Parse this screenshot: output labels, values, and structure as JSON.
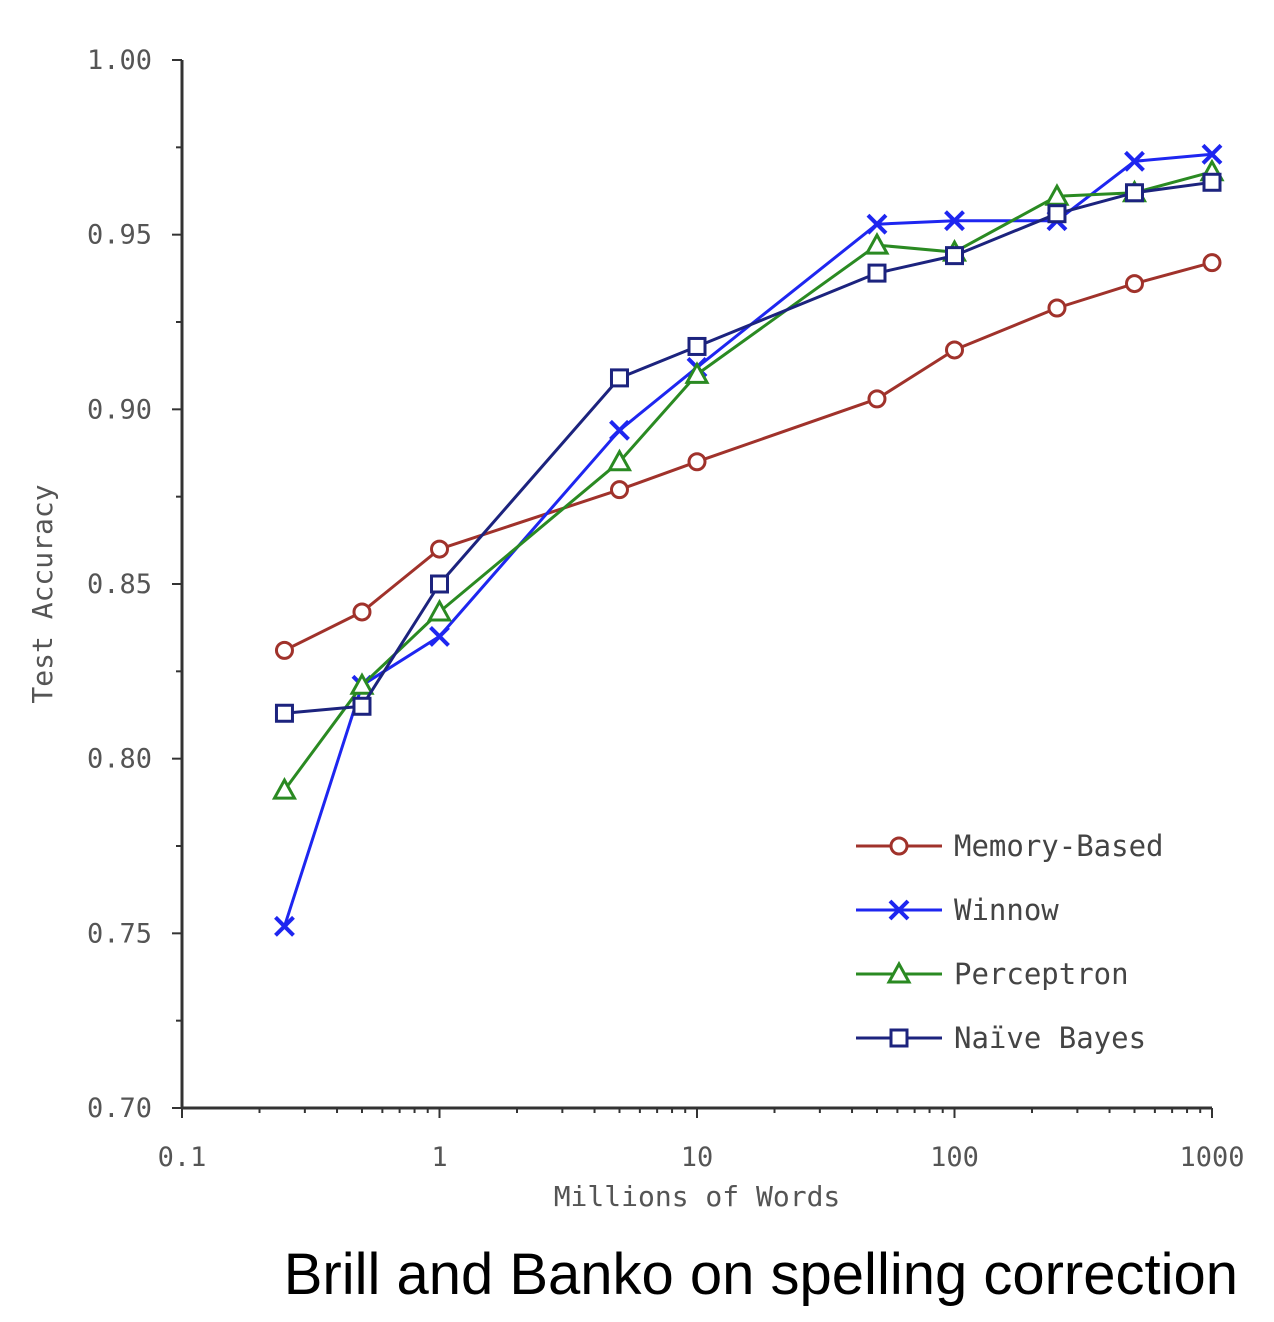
{
  "caption": "Brill and Banko on spelling correction",
  "chart_data": {
    "type": "line",
    "xlabel": "Millions of Words",
    "ylabel": "Test Accuracy",
    "xscale": "log",
    "xlim": [
      0.1,
      1000
    ],
    "ylim": [
      0.7,
      1.0
    ],
    "x_ticks": [
      "0.1",
      "1",
      "10",
      "100",
      "1000"
    ],
    "y_ticks": [
      "0.70",
      "0.75",
      "0.80",
      "0.85",
      "0.90",
      "0.95",
      "1.00"
    ],
    "x": [
      0.25,
      0.5,
      1,
      5,
      10,
      50,
      100,
      250,
      500,
      1000
    ],
    "legend_position": "bottom-right",
    "grid": false,
    "series": [
      {
        "name": "Memory-Based",
        "color": "#a0322b",
        "marker": "circle",
        "values": [
          0.831,
          0.842,
          0.86,
          0.877,
          0.885,
          0.903,
          0.917,
          0.929,
          0.936,
          0.942
        ]
      },
      {
        "name": "Winnow",
        "color": "#1e26f0",
        "marker": "x",
        "values": [
          0.752,
          0.821,
          0.835,
          0.894,
          0.912,
          0.953,
          0.954,
          0.954,
          0.971,
          0.973
        ]
      },
      {
        "name": "Perceptron",
        "color": "#2a8a22",
        "marker": "triangle",
        "values": [
          0.791,
          0.821,
          0.842,
          0.885,
          0.91,
          0.947,
          0.945,
          0.961,
          0.962,
          0.968
        ]
      },
      {
        "name": "Naïve Bayes",
        "color": "#1c237e",
        "marker": "square",
        "values": [
          0.813,
          0.815,
          0.85,
          0.909,
          0.918,
          0.939,
          0.944,
          0.956,
          0.962,
          0.965
        ]
      }
    ]
  }
}
